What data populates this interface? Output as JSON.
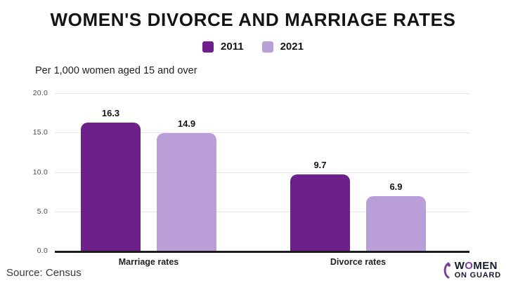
{
  "chart_data": {
    "type": "bar",
    "title": "WOMEN'S DIVORCE AND MARRIAGE RATES",
    "subtitle": "Per 1,000 women aged 15 and over",
    "categories": [
      "Marriage rates",
      "Divorce rates"
    ],
    "series": [
      {
        "name": "2011",
        "color": "#6d1f8a",
        "values": [
          16.3,
          9.7
        ]
      },
      {
        "name": "2021",
        "color": "#b99ed8",
        "values": [
          14.9,
          6.9
        ]
      }
    ],
    "ylim": [
      0,
      20
    ],
    "yticks": [
      "20.0",
      "15.0",
      "10.0",
      "5.0",
      "0.0"
    ],
    "grid": true,
    "legend_position": "top"
  },
  "footer": {
    "source": "Source: Census",
    "logo": {
      "line1_pre": "W",
      "line1_o": "O",
      "line1_post": "MEN",
      "line2": "ON GUARD"
    }
  },
  "colors": {
    "series_2011": "#6d1f8a",
    "series_2021": "#b99ed8",
    "baseline": "#1c1c1c",
    "gridline": "#e6e4e8",
    "logo_purple": "#7c3f9e"
  }
}
